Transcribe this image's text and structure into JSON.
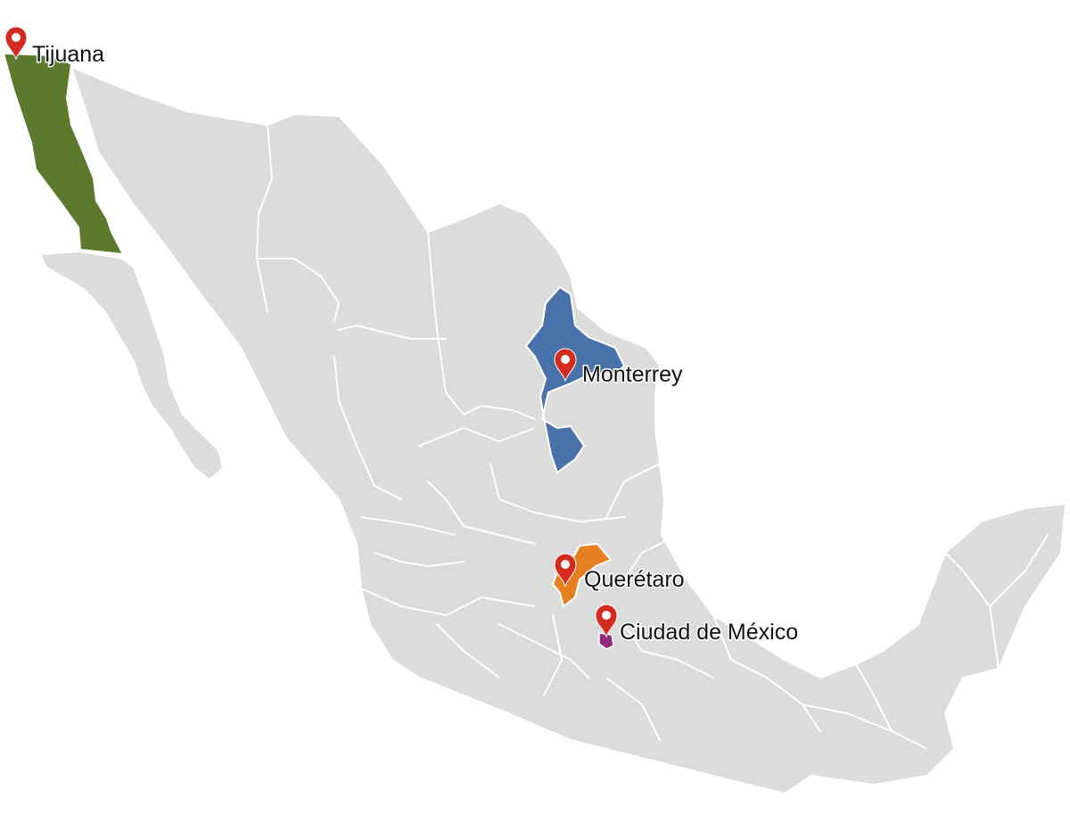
{
  "colors": {
    "land": "#dcdcdc",
    "borders": "#ffffff",
    "baja_california": "#5b7a2e",
    "nuevo_leon": "#4a72aa",
    "queretaro": "#e67e22",
    "cdmx": "#8e2a7a",
    "marker": "#d52b1e"
  },
  "markers": [
    {
      "id": "tijuana",
      "label": "Tijuana",
      "icon": "map-pin-icon"
    },
    {
      "id": "monterrey",
      "label": "Monterrey",
      "icon": "map-pin-icon"
    },
    {
      "id": "queretaro",
      "label": "Querétaro",
      "icon": "map-pin-icon"
    },
    {
      "id": "cdmx",
      "label": "Ciudad de México",
      "icon": "map-pin-icon"
    }
  ]
}
